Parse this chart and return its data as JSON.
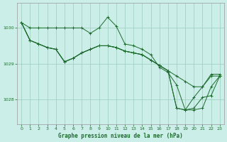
{
  "title": "Graphe pression niveau de la mer (hPa)",
  "bg_color": "#cceee8",
  "grid_color": "#99ccbb",
  "line_color": "#1a6b2a",
  "xlim": [
    -0.5,
    23.5
  ],
  "ylim": [
    1027.3,
    1030.7
  ],
  "yticks": [
    1028,
    1029,
    1030
  ],
  "xticks": [
    0,
    1,
    2,
    3,
    4,
    5,
    6,
    7,
    8,
    9,
    10,
    11,
    12,
    13,
    14,
    15,
    16,
    17,
    18,
    19,
    20,
    21,
    22,
    23
  ],
  "series": [
    [
      1030.15,
      1030.0,
      1030.0,
      1030.0,
      1030.0,
      1030.0,
      1030.0,
      1030.0,
      1029.85,
      1030.0,
      1030.3,
      1030.05,
      1029.55,
      1029.5,
      1029.4,
      1029.25,
      1028.9,
      1028.75,
      1028.4,
      1027.7,
      1028.05,
      1028.35,
      1028.7,
      1028.7
    ],
    [
      1030.15,
      1029.65,
      1029.55,
      1029.45,
      1029.4,
      1029.05,
      1029.15,
      1029.3,
      1029.4,
      1029.5,
      1029.5,
      1029.45,
      1029.35,
      1029.3,
      1029.25,
      1029.1,
      1028.95,
      1028.8,
      1028.65,
      1028.5,
      1028.35,
      1028.35,
      1028.65,
      1028.65
    ],
    [
      1030.15,
      1029.65,
      1029.55,
      1029.45,
      1029.4,
      1029.05,
      1029.15,
      1029.3,
      1029.4,
      1029.5,
      1029.5,
      1029.45,
      1029.35,
      1029.3,
      1029.25,
      1029.1,
      1028.95,
      1028.8,
      1027.75,
      1027.7,
      1027.75,
      1028.05,
      1028.1,
      1028.65
    ],
    [
      1030.15,
      1029.65,
      1029.55,
      1029.45,
      1029.4,
      1029.05,
      1029.15,
      1029.3,
      1029.4,
      1029.5,
      1029.5,
      1029.45,
      1029.35,
      1029.3,
      1029.25,
      1029.1,
      1028.95,
      1028.8,
      1027.75,
      1027.7,
      1027.7,
      1027.75,
      1028.35,
      1028.65
    ]
  ]
}
